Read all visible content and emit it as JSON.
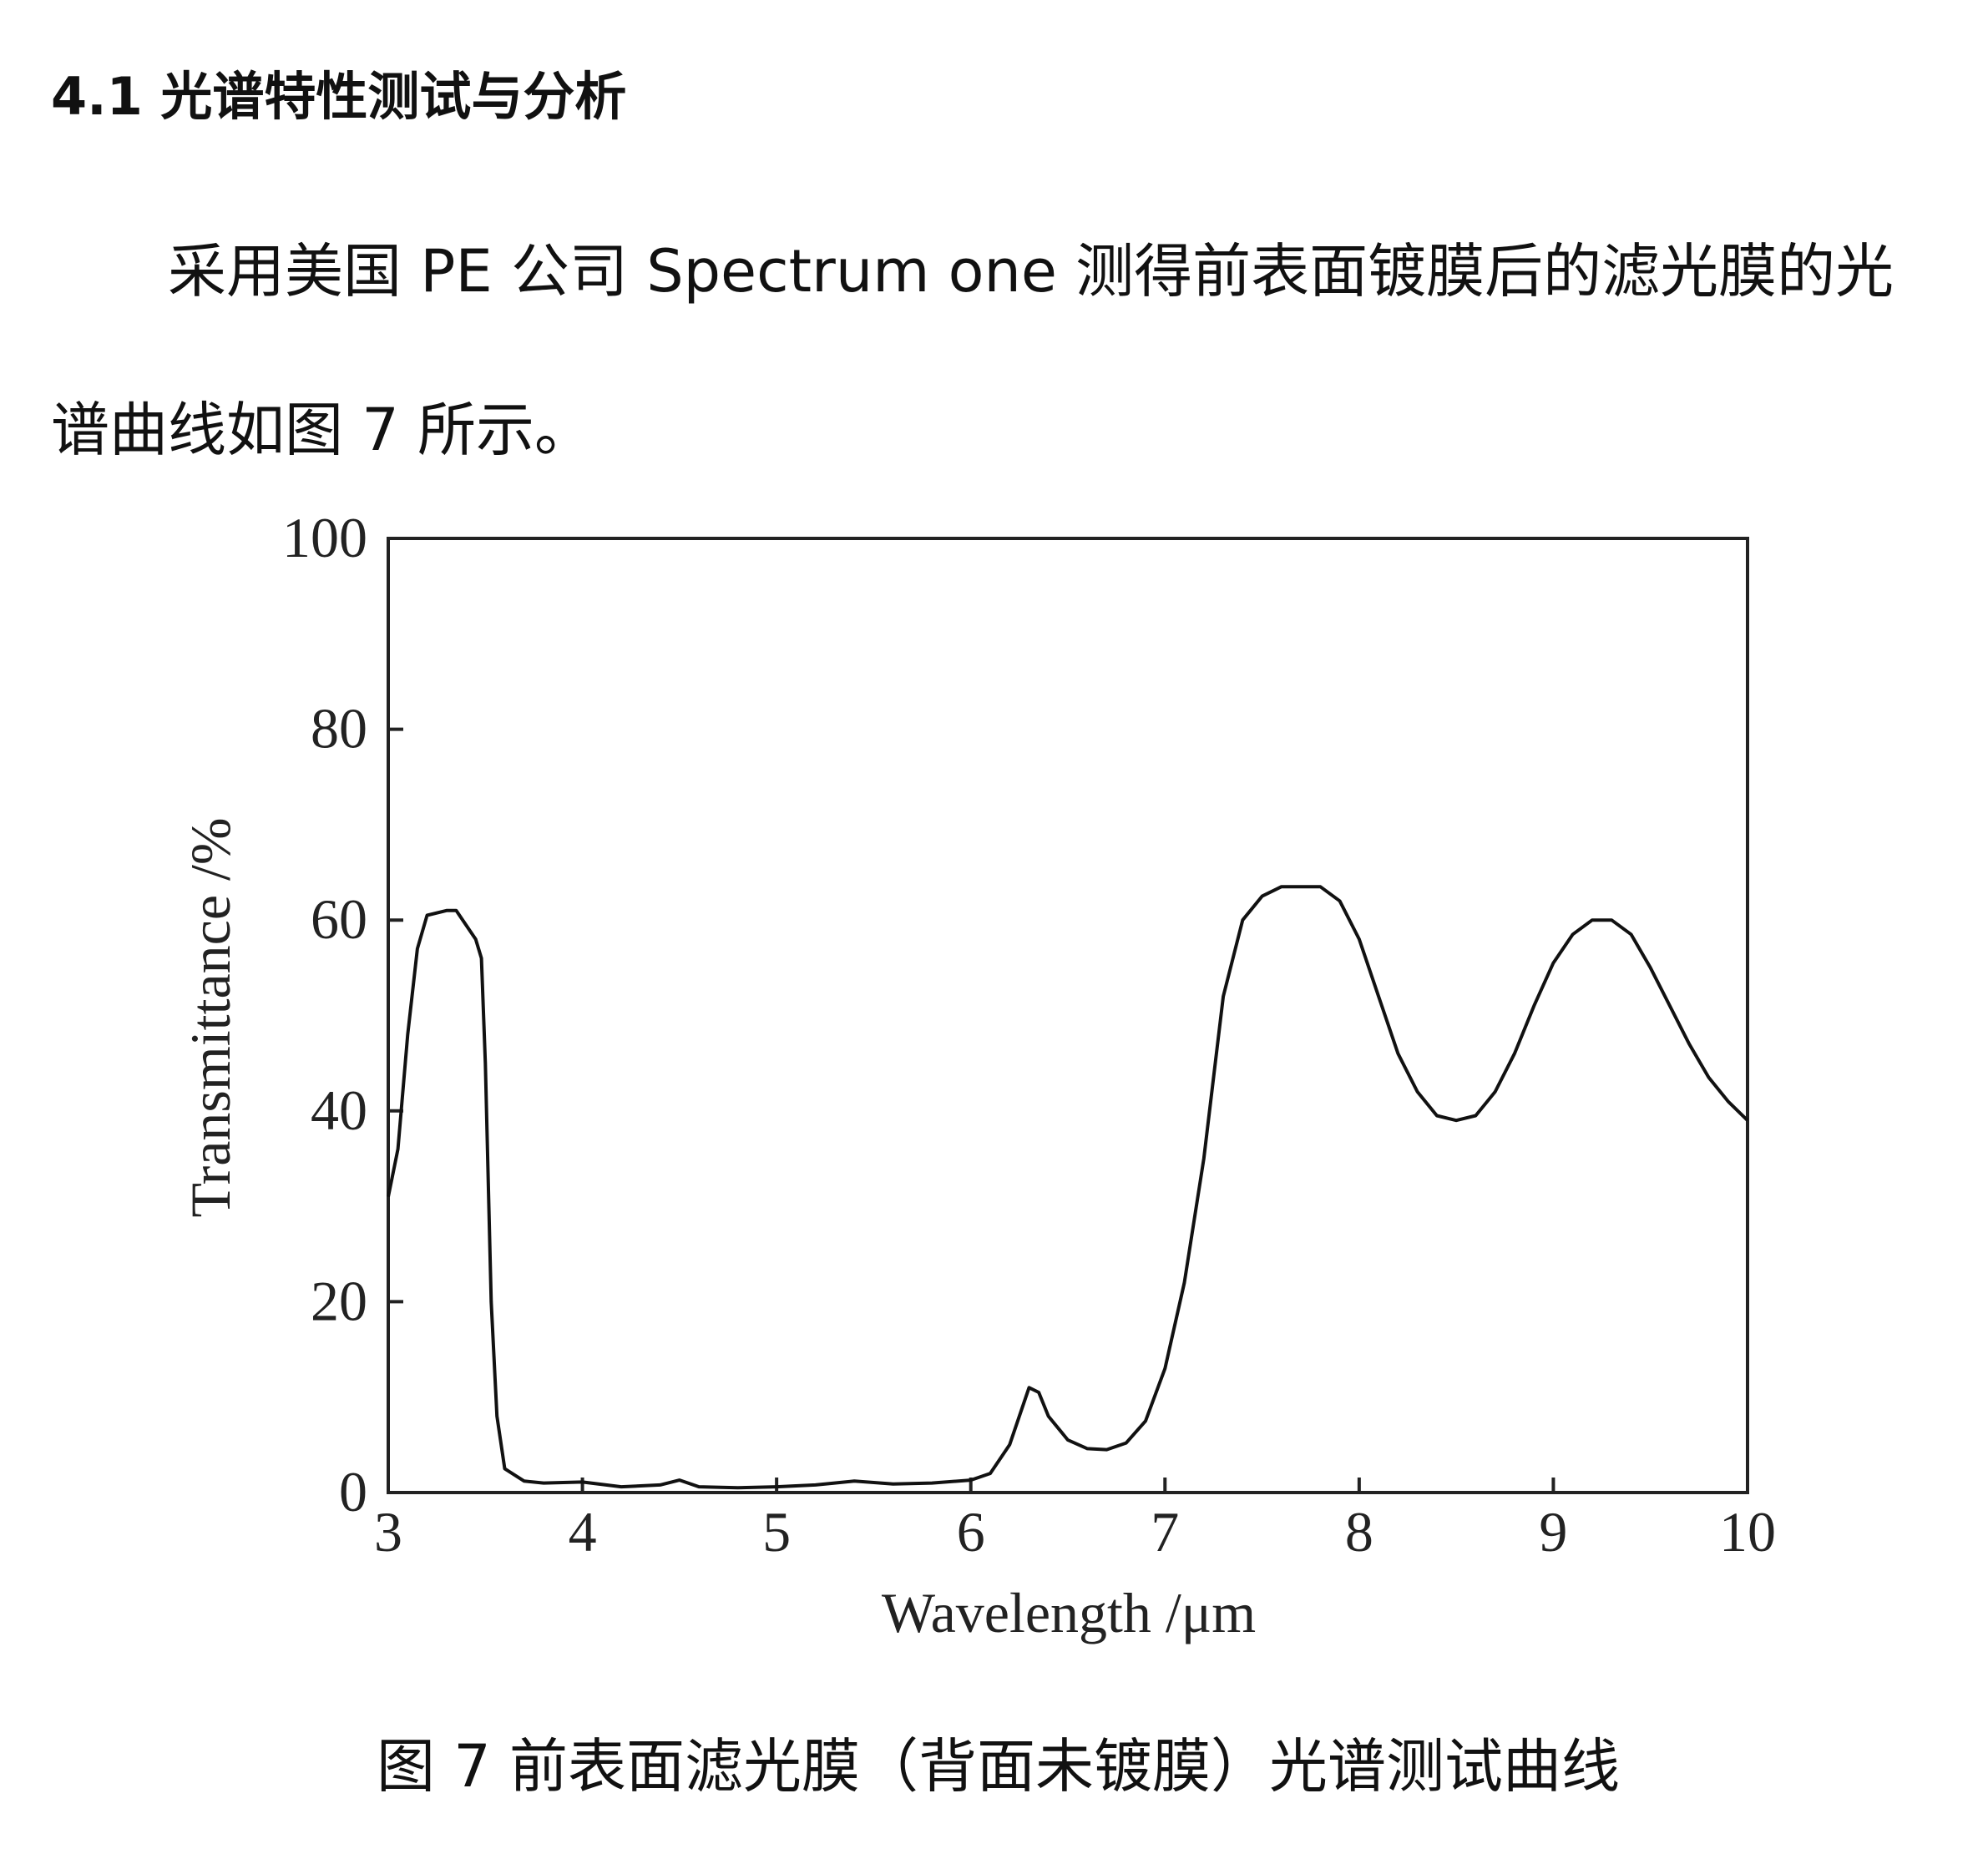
{
  "heading": "4.1 光谱特性测试与分析",
  "paragraph": "采用美国 PE 公司 Spectrum one 测得前表面镀膜后的滤光膜的光谱曲线如图 7 所示。",
  "chart_data": {
    "type": "line",
    "xlabel": "Wavelength /μm",
    "ylabel": "Transmittance /%",
    "x": [
      3.0,
      3.05,
      3.1,
      3.15,
      3.2,
      3.3,
      3.35,
      3.4,
      3.45,
      3.48,
      3.5,
      3.53,
      3.56,
      3.6,
      3.7,
      3.8,
      4.0,
      4.2,
      4.4,
      4.5,
      4.6,
      4.8,
      5.0,
      5.2,
      5.4,
      5.6,
      5.8,
      6.0,
      6.1,
      6.2,
      6.3,
      6.35,
      6.4,
      6.5,
      6.6,
      6.7,
      6.8,
      6.9,
      7.0,
      7.1,
      7.2,
      7.3,
      7.4,
      7.5,
      7.6,
      7.7,
      7.8,
      7.9,
      8.0,
      8.1,
      8.2,
      8.3,
      8.4,
      8.5,
      8.6,
      8.7,
      8.8,
      8.9,
      9.0,
      9.1,
      9.2,
      9.3,
      9.4,
      9.5,
      9.6,
      9.7,
      9.8,
      9.9,
      10.0
    ],
    "values": [
      31,
      36,
      48,
      57,
      60.5,
      61,
      61,
      59.5,
      58,
      56,
      45,
      20,
      8,
      2.5,
      1.2,
      1,
      1.1,
      0.6,
      0.8,
      1.3,
      0.6,
      0.5,
      0.6,
      0.8,
      1.2,
      0.9,
      1,
      1.3,
      2,
      5,
      11,
      10.5,
      8,
      5.5,
      4.6,
      4.5,
      5.2,
      7.5,
      13,
      22,
      35,
      52,
      60,
      62.5,
      63.5,
      63.5,
      63.5,
      62,
      58,
      52,
      46,
      42,
      39.5,
      39,
      39.5,
      42,
      46,
      51,
      55.5,
      58.5,
      60,
      60,
      58.5,
      55,
      51,
      47,
      43.5,
      41,
      39
    ],
    "color": "#111111",
    "xlim": [
      3,
      10
    ],
    "xticks": [
      3,
      4,
      5,
      6,
      7,
      8,
      9,
      10
    ],
    "ylim": [
      0,
      100
    ],
    "yticks": [
      0,
      20,
      40,
      60,
      80,
      100
    ]
  },
  "caption": "图 7  前表面滤光膜（背面未镀膜）光谱测试曲线"
}
